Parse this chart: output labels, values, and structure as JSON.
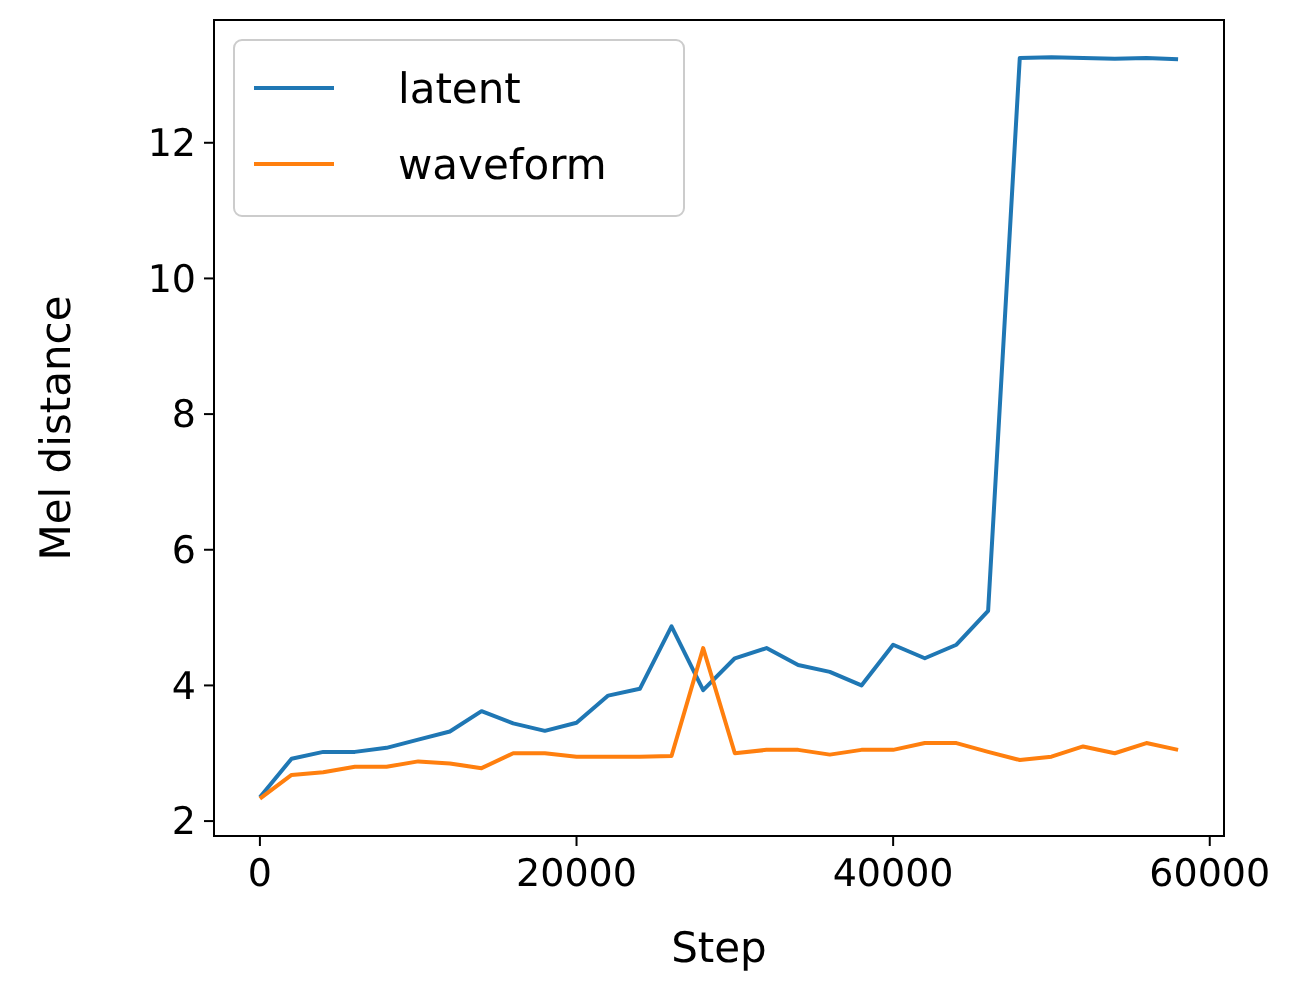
{
  "chart_data": {
    "type": "line",
    "xlabel": "Step",
    "ylabel": "Mel distance",
    "x": [
      0,
      2000,
      4000,
      6000,
      8000,
      10000,
      12000,
      14000,
      16000,
      18000,
      20000,
      22000,
      24000,
      26000,
      28000,
      30000,
      32000,
      34000,
      36000,
      38000,
      40000,
      42000,
      44000,
      46000,
      48000,
      50000,
      52000,
      54000,
      56000,
      58000
    ],
    "series": [
      {
        "name": "latent",
        "color": "#1f77b4",
        "values": [
          2.35,
          2.92,
          3.02,
          3.02,
          3.08,
          3.2,
          3.32,
          3.62,
          3.44,
          3.33,
          3.45,
          3.85,
          3.95,
          4.87,
          3.93,
          4.4,
          4.55,
          4.3,
          4.2,
          4.0,
          4.6,
          4.4,
          4.6,
          5.1,
          13.25,
          13.26,
          13.25,
          13.24,
          13.25,
          13.23
        ]
      },
      {
        "name": "waveform",
        "color": "#ff7f0e",
        "values": [
          2.33,
          2.68,
          2.72,
          2.8,
          2.8,
          2.88,
          2.85,
          2.78,
          3.0,
          3.0,
          2.95,
          2.95,
          2.95,
          2.96,
          4.55,
          3.0,
          3.05,
          3.05,
          2.98,
          3.05,
          3.05,
          3.15,
          3.15,
          3.02,
          2.9,
          2.95,
          3.1,
          3.0,
          3.15,
          3.05
        ]
      }
    ],
    "xlim": [
      -2900,
      60900
    ],
    "xticks": [
      0,
      20000,
      40000,
      60000
    ],
    "ylim": [
      1.78,
      13.81
    ],
    "yticks": [
      2,
      4,
      6,
      8,
      10,
      12
    ],
    "legend": "top left",
    "grid": false,
    "marker": "none",
    "line_style": "solid"
  }
}
